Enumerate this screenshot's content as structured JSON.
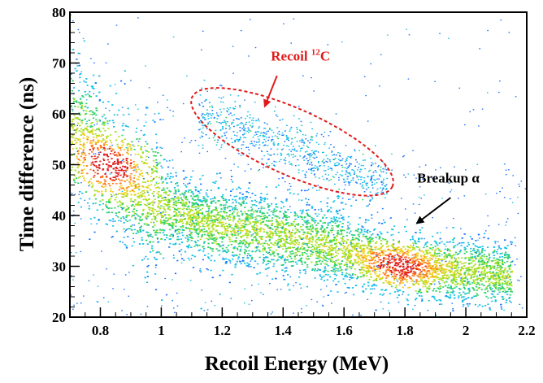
{
  "chart_data": {
    "type": "heatmap",
    "title": "",
    "xlabel": "Recoil Energy (MeV)",
    "ylabel": "Time difference (ns)",
    "xlim": [
      0.7,
      2.2
    ],
    "ylim": [
      20,
      80
    ],
    "x_ticks": [
      "0.8",
      "1",
      "1.2",
      "1.4",
      "1.6",
      "1.8",
      "2",
      "2.2"
    ],
    "x_tick_values": [
      0.8,
      1.0,
      1.2,
      1.4,
      1.6,
      1.8,
      2.0,
      2.2
    ],
    "y_ticks": [
      "20",
      "30",
      "40",
      "50",
      "60",
      "70",
      "80"
    ],
    "y_tick_values": [
      20,
      30,
      40,
      50,
      60,
      70,
      80
    ],
    "colormap": [
      "#1a6fff",
      "#17c0e6",
      "#2fd16a",
      "#a8e020",
      "#f0d020",
      "#ff7a1a",
      "#e21b1b"
    ],
    "bands": [
      {
        "name": "Breakup alpha",
        "description": "main dense band",
        "centerline": [
          [
            0.72,
            57
          ],
          [
            0.8,
            51
          ],
          [
            0.9,
            46
          ],
          [
            1.0,
            42
          ],
          [
            1.1,
            39.5
          ],
          [
            1.2,
            38
          ],
          [
            1.3,
            37
          ],
          [
            1.4,
            36
          ],
          [
            1.5,
            34.5
          ],
          [
            1.6,
            33.5
          ],
          [
            1.7,
            31.5
          ],
          [
            1.8,
            30
          ],
          [
            1.9,
            29.5
          ],
          [
            2.0,
            29
          ],
          [
            2.1,
            28.5
          ]
        ],
        "peaks": [
          {
            "x": 0.82,
            "y": 50,
            "level": 1.0
          },
          {
            "x": 1.78,
            "y": 30,
            "level": 0.85
          }
        ]
      },
      {
        "name": "Recoil 12C",
        "description": "sparse band",
        "centerline": [
          [
            1.15,
            59
          ],
          [
            1.3,
            56
          ],
          [
            1.45,
            53
          ],
          [
            1.6,
            49
          ],
          [
            1.7,
            47
          ]
        ]
      }
    ],
    "annotations": [
      {
        "label_prefix": "Recoil ",
        "label_sup": "12",
        "label_suffix": "C",
        "color": "#e11b1b",
        "text_anchor": [
          1.36,
          70.5
        ],
        "arrow_from": [
          1.38,
          67.5
        ],
        "arrow_to": [
          1.34,
          61.5
        ],
        "ellipse": {
          "center": [
            1.43,
            54.5
          ],
          "rx_data": 0.36,
          "ry_data": 6.5,
          "angle_deg": 24
        }
      },
      {
        "label": "Breakup α",
        "color": "#000000",
        "text_anchor": [
          1.84,
          46.5
        ],
        "arrow_from": [
          1.95,
          43.5
        ],
        "arrow_to": [
          1.84,
          38.5
        ]
      }
    ]
  }
}
